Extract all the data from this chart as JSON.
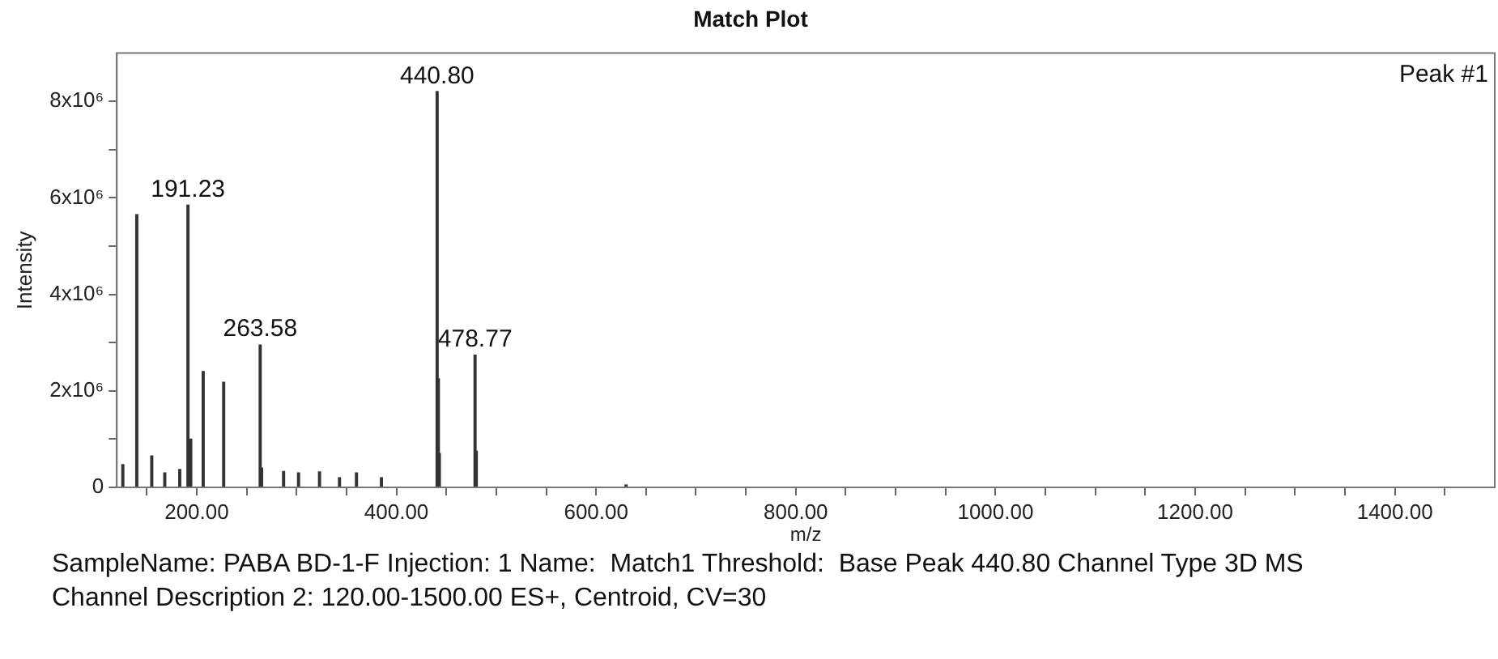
{
  "chart_data": {
    "type": "bar",
    "title": "Match Plot",
    "xlabel": "m/z",
    "ylabel": "Intensity",
    "color": "#333333",
    "x": [
      126,
      140,
      155,
      168,
      183,
      191.23,
      194,
      206.5,
      227,
      263.58,
      265,
      287,
      302,
      323,
      343,
      360,
      385,
      440.8,
      442,
      443,
      478.77,
      480,
      630
    ],
    "values": [
      470000,
      5650000,
      650000,
      300000,
      370000,
      5850000,
      1000000,
      2400000,
      2180000,
      2950000,
      400000,
      330000,
      300000,
      320000,
      200000,
      300000,
      200000,
      8200000,
      2250000,
      700000,
      2740000,
      750000,
      50000
    ],
    "xlim": [
      120,
      1500
    ],
    "xticks": [
      {
        "value": 150,
        "label": null
      },
      {
        "value": 200,
        "label": "200.00"
      },
      {
        "value": 250,
        "label": null
      },
      {
        "value": 300,
        "label": null
      },
      {
        "value": 350,
        "label": null
      },
      {
        "value": 400,
        "label": "400.00"
      },
      {
        "value": 450,
        "label": null
      },
      {
        "value": 500,
        "label": null
      },
      {
        "value": 550,
        "label": null
      },
      {
        "value": 600,
        "label": "600.00"
      },
      {
        "value": 650,
        "label": null
      },
      {
        "value": 700,
        "label": null
      },
      {
        "value": 750,
        "label": null
      },
      {
        "value": 800,
        "label": "800.00"
      },
      {
        "value": 850,
        "label": null
      },
      {
        "value": 900,
        "label": null
      },
      {
        "value": 950,
        "label": null
      },
      {
        "value": 1000,
        "label": "1000.00"
      },
      {
        "value": 1050,
        "label": null
      },
      {
        "value": 1100,
        "label": null
      },
      {
        "value": 1150,
        "label": null
      },
      {
        "value": 1200,
        "label": "1200.00"
      },
      {
        "value": 1250,
        "label": null
      },
      {
        "value": 1300,
        "label": null
      },
      {
        "value": 1350,
        "label": null
      },
      {
        "value": 1400,
        "label": "1400.00"
      },
      {
        "value": 1450,
        "label": null
      }
    ],
    "ylim": [
      0,
      9000000
    ],
    "yticks": [
      0,
      {
        "value": 1000000,
        "label": null
      },
      {
        "value": 2000000,
        "label": "2x10⁶"
      },
      {
        "value": 3000000,
        "label": null
      },
      {
        "value": 4000000,
        "label": "4x10⁶"
      },
      {
        "value": 5000000,
        "label": null
      },
      {
        "value": 6000000,
        "label": "6x10⁶"
      },
      {
        "value": 7000000,
        "label": null
      },
      {
        "value": 8000000,
        "label": "8x10⁶"
      }
    ],
    "grid": false,
    "legend": false,
    "annotations": [
      {
        "text": "191.23",
        "x": 191.23,
        "y": 5850000
      },
      {
        "text": "263.58",
        "x": 263.58,
        "y": 2950000
      },
      {
        "text": "440.80",
        "x": 440.8,
        "y": 8200000
      },
      {
        "text": "478.77",
        "x": 478.77,
        "y": 2740000
      },
      "Peak #1",
      "SampleName: PABA BD-1-F Injection: 1 Name:  Match1 Threshold:  Base Peak 440.80 Channel Type 3D MS",
      "Channel Description 2: 120.00-1500.00 ES+, Centroid, CV=30"
    ]
  }
}
